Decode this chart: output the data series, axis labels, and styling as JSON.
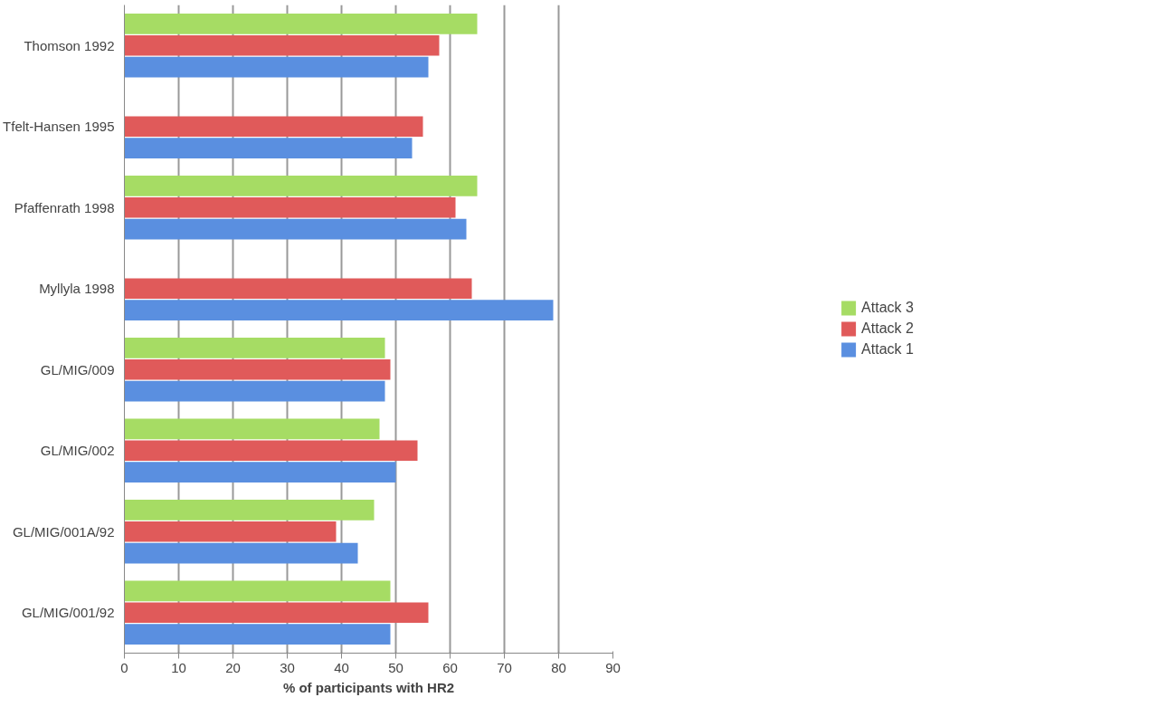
{
  "chart_data": {
    "type": "bar",
    "orientation": "horizontal",
    "xlabel": "% of participants with HR2",
    "categories": [
      "Thomson 1992",
      "Tfelt-Hansen 1995",
      "Pfaffenrath 1998",
      "Myllyla 1998",
      "GL/MIG/009",
      "GL/MIG/002",
      "GL/MIG/001A/92",
      "GL/MIG/001/92"
    ],
    "series": [
      {
        "name": "Attack 1",
        "color": "#5a8fe0",
        "values": [
          56,
          53,
          63,
          79,
          48,
          50,
          43,
          49
        ]
      },
      {
        "name": "Attack 2",
        "color": "#e05a5a",
        "values": [
          58,
          55,
          61,
          64,
          49,
          54,
          39,
          56
        ]
      },
      {
        "name": "Attack 3",
        "color": "#a6dc64",
        "values": [
          65,
          null,
          65,
          null,
          48,
          47,
          46,
          49
        ]
      }
    ],
    "xlim": [
      0,
      90
    ],
    "xticks": [
      0,
      10,
      20,
      30,
      40,
      50,
      60,
      70,
      80,
      90
    ],
    "grid": "x",
    "legend": "right"
  }
}
